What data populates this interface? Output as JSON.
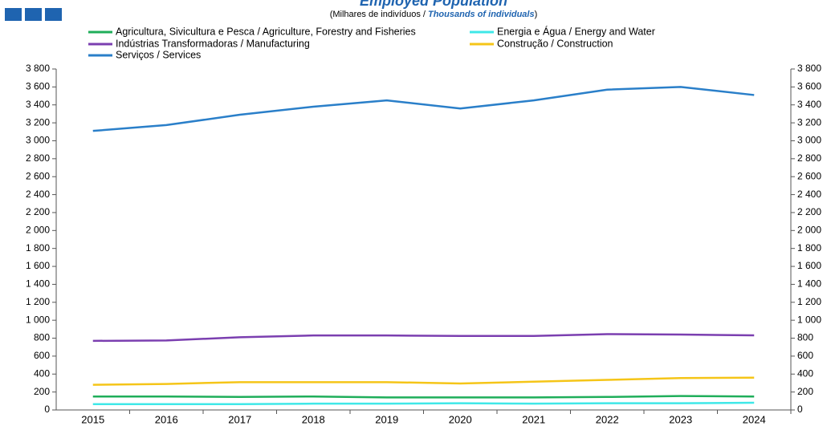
{
  "chart_data": {
    "type": "line",
    "title": "Employed Population",
    "subtitle": [
      "(Milhares de indivíduos / ",
      "Thousands of individuals",
      ")"
    ],
    "categories": [
      "2015",
      "2016",
      "2017",
      "2018",
      "2019",
      "2020",
      "2021",
      "2022",
      "2023",
      "2024"
    ],
    "series": [
      {
        "name": "Agricultura, Sivicultura e Pesca / Agriculture, Forestry and Fisheries",
        "color": "#1fae5a",
        "values": [
          150,
          150,
          145,
          150,
          140,
          140,
          140,
          145,
          155,
          150
        ]
      },
      {
        "name": "Energia e Água / Energy and Water",
        "color": "#3fe8e8",
        "values": [
          65,
          65,
          65,
          70,
          70,
          75,
          70,
          75,
          75,
          80
        ]
      },
      {
        "name": "Indústrias Transformadoras / Manufacturing",
        "color": "#7b3fb0",
        "values": [
          770,
          775,
          810,
          830,
          830,
          825,
          825,
          845,
          840,
          832
        ]
      },
      {
        "name": "Construção / Construction",
        "color": "#f5c518",
        "values": [
          280,
          290,
          310,
          310,
          310,
          295,
          315,
          335,
          355,
          360
        ]
      },
      {
        "name": "Serviços / Services",
        "color": "#2a7fc9",
        "values": [
          3110,
          3175,
          3290,
          3380,
          3450,
          3360,
          3450,
          3570,
          3600,
          3510
        ]
      }
    ],
    "ylim": [
      0,
      3800
    ],
    "yticks": [
      0,
      200,
      400,
      600,
      800,
      {
        "value": 1000,
        "label": "1 000"
      },
      {
        "value": 1200,
        "label": "1 200"
      },
      {
        "value": 1400,
        "label": "1 400"
      },
      {
        "value": 1600,
        "label": "1 600"
      },
      {
        "value": 1800,
        "label": "1 800"
      },
      {
        "value": 2000,
        "label": "2 000"
      },
      {
        "value": 2200,
        "label": "2 200"
      },
      {
        "value": 2400,
        "label": "2 400"
      },
      {
        "value": 2600,
        "label": "2 600"
      },
      {
        "value": 2800,
        "label": "2 800"
      },
      {
        "value": 3000,
        "label": "3 000"
      },
      {
        "value": 3200,
        "label": "3 200"
      },
      {
        "value": 3400,
        "label": "3 400"
      },
      {
        "value": 3600,
        "label": "3 600"
      },
      {
        "value": 3800,
        "label": "3 800"
      }
    ],
    "grid": false
  }
}
